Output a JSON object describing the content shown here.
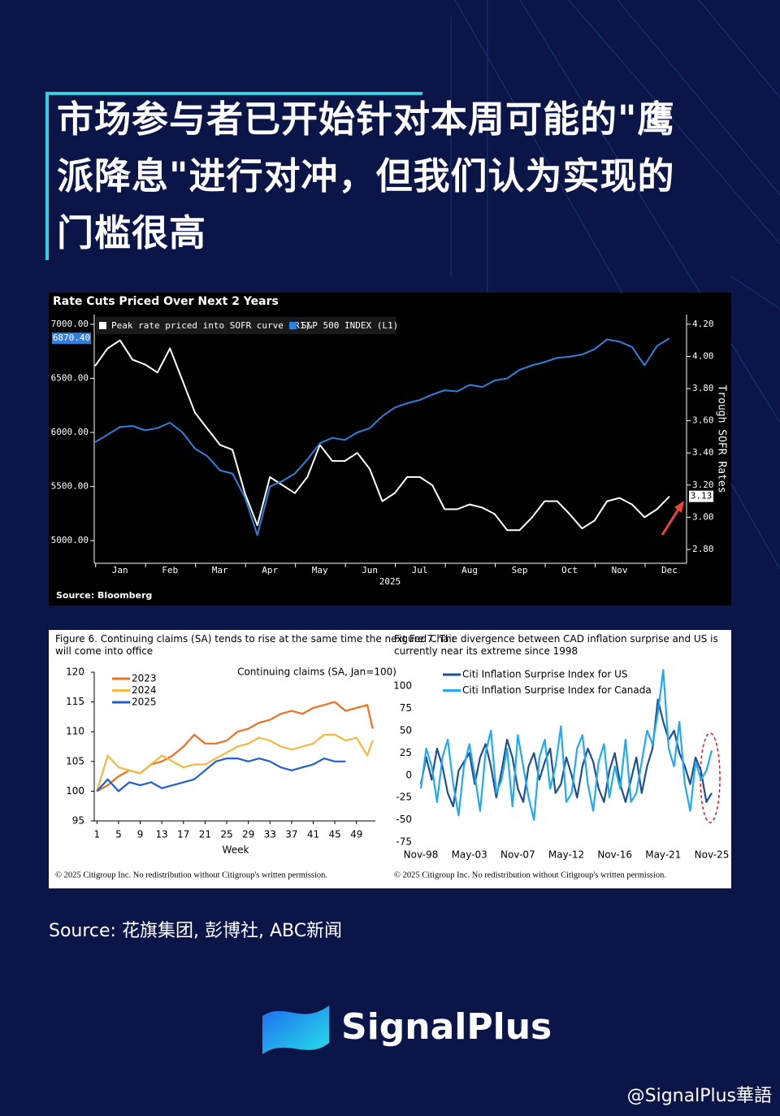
{
  "header": {
    "title": "市场参与者已开始针对本周可能的\"鹰派降息\"进行对冲，但我们认为实现的门槛很高"
  },
  "chart_data": [
    {
      "type": "line",
      "title": "Rate Cuts Priced Over Next 2 Years",
      "source": "Source: Bloomberg",
      "categories": [
        null,
        null,
        "Jan",
        null,
        null,
        null,
        "Feb",
        null,
        null,
        null,
        "Mar",
        null,
        null,
        null,
        "Apr",
        null,
        null,
        null,
        "May",
        null,
        null,
        null,
        "Jun",
        null,
        null,
        null,
        "Jul",
        null,
        null,
        null,
        "Aug",
        null,
        null,
        null,
        "Sep",
        null,
        null,
        null,
        "Oct",
        null,
        null,
        null,
        "Nov",
        null,
        null,
        null,
        "Dec"
      ],
      "xlabel": "2025",
      "y2label": "Trough SOFR Rates",
      "ylim": [
        4790,
        7090
      ],
      "yticks": [
        {
          "value": 5000,
          "label": "5000.00"
        },
        {
          "value": 5500,
          "label": "5500.00"
        },
        {
          "value": 6000,
          "label": "6000.00"
        },
        {
          "value": 6500,
          "label": "6500.00"
        },
        {
          "value": 7000,
          "label": "7000.00"
        }
      ],
      "y2lim": [
        2.714,
        4.26
      ],
      "y2ticks": [
        {
          "value": 2.8,
          "label": "2.80"
        },
        {
          "value": 3,
          "label": "3.00"
        },
        {
          "value": 3.2,
          "label": "3.20"
        },
        {
          "value": 3.4,
          "label": "3.40"
        },
        {
          "value": 3.6,
          "label": "3.60"
        },
        {
          "value": 3.8,
          "label": "3.80"
        },
        {
          "value": 4,
          "label": "4.00"
        },
        {
          "value": 4.2,
          "label": "4.20"
        }
      ],
      "series": [
        {
          "name": "Peak rate priced into SOFR curve (R1)",
          "color": "#ffffff",
          "axis": "y2",
          "values": [
            3.94,
            4.05,
            4.1,
            3.98,
            3.95,
            3.9,
            4.05,
            3.85,
            3.65,
            3.55,
            3.45,
            3.42,
            3.15,
            2.95,
            3.25,
            3.2,
            3.15,
            3.25,
            3.45,
            3.35,
            3.35,
            3.4,
            3.3,
            3.1,
            3.15,
            3.25,
            3.25,
            3.2,
            3.05,
            3.05,
            3.08,
            3.06,
            3.02,
            2.92,
            2.92,
            3.0,
            3.1,
            3.1,
            3.02,
            2.93,
            2.98,
            3.1,
            3.12,
            3.08,
            3.0,
            3.05,
            3.13
          ]
        },
        {
          "name": "S&P 500 INDEX  (L1)",
          "color": "#2f7fe0",
          "values": [
            5910,
            5980,
            6050,
            6060,
            6020,
            6040,
            6090,
            6000,
            5850,
            5780,
            5650,
            5620,
            5400,
            5050,
            5500,
            5550,
            5620,
            5750,
            5900,
            5950,
            5930,
            6000,
            6040,
            6150,
            6230,
            6270,
            6300,
            6350,
            6390,
            6380,
            6440,
            6420,
            6480,
            6500,
            6580,
            6620,
            6650,
            6690,
            6700,
            6720,
            6770,
            6860,
            6840,
            6790,
            6620,
            6800,
            6870.4
          ],
          "value_labels": [
            null,
            null,
            null,
            null,
            null,
            null,
            null,
            null,
            null,
            null,
            null,
            null,
            null,
            null,
            null,
            null,
            null,
            null,
            null,
            null,
            null,
            null,
            null,
            null,
            null,
            null,
            null,
            null,
            null,
            null,
            null,
            null,
            null,
            null,
            null,
            null,
            null,
            null,
            null,
            null,
            null,
            null,
            null,
            null,
            null,
            null,
            "6870.40"
          ]
        }
      ]
    },
    {
      "type": "line",
      "title": "Figure 6. Continuing claims (SA) tends to rise at the same time the next Fed Chair will come into office",
      "subtitle": "Continuing claims (SA, Jan=100)",
      "xlabel": "Week",
      "footnote": "© 2025 Citigroup Inc. No redistribution without Citigroup's written permission.",
      "x": [
        1,
        3,
        5,
        7,
        9,
        11,
        13,
        15,
        17,
        19,
        21,
        23,
        25,
        27,
        29,
        31,
        33,
        35,
        37,
        39,
        41,
        43,
        45,
        47,
        49,
        51,
        52
      ],
      "xlim": [
        0.5,
        52.5
      ],
      "xticks": [
        1,
        5,
        9,
        13,
        17,
        21,
        25,
        29,
        33,
        37,
        41,
        45,
        49
      ],
      "ylim": [
        95,
        120
      ],
      "yticks": [
        95,
        100,
        105,
        110,
        115,
        120
      ],
      "series": [
        {
          "name": "2023",
          "color": "#f07020",
          "values": [
            100,
            101,
            102.5,
            103.5,
            103,
            104.5,
            105,
            106,
            107.5,
            109.5,
            108,
            108,
            108.5,
            110,
            110.5,
            111.5,
            112,
            113,
            113.5,
            113,
            114,
            114.5,
            115,
            113.5,
            114,
            114.5,
            110.5
          ]
        },
        {
          "name": "2024",
          "color": "#f5b840",
          "values": [
            100,
            106,
            104,
            103.5,
            103,
            104.5,
            106,
            105,
            104,
            104.5,
            104.5,
            105.5,
            106.5,
            107.5,
            108,
            109,
            108.5,
            107.5,
            107,
            107.5,
            108,
            109.5,
            109.5,
            108.5,
            109,
            106,
            108.5
          ]
        },
        {
          "name": "2025",
          "color": "#2060c8",
          "values": [
            100,
            102,
            100,
            101.5,
            101,
            101.5,
            100.5,
            101,
            101.5,
            102,
            103.5,
            105,
            105.5,
            105.5,
            105,
            105.5,
            105,
            104,
            103.5,
            104,
            104.5,
            105.5,
            105,
            105,
            null,
            null,
            null
          ]
        }
      ]
    },
    {
      "type": "line",
      "title": "Figure 7. The divergence between CAD inflation surprise and US is currently near its extreme since 1998",
      "footnote": "© 2025 Citigroup Inc. No redistribution without Citigroup's written permission.",
      "categories": [
        "Nov-98",
        null,
        null,
        null,
        null,
        null,
        null,
        null,
        null,
        "May-03",
        null,
        null,
        null,
        null,
        null,
        null,
        null,
        null,
        "Nov-07",
        null,
        null,
        null,
        null,
        null,
        null,
        null,
        null,
        "May-12",
        null,
        null,
        null,
        null,
        null,
        null,
        null,
        null,
        "Nov-16",
        null,
        null,
        null,
        null,
        null,
        null,
        null,
        null,
        "May-21",
        null,
        null,
        null,
        null,
        null,
        null,
        null,
        null,
        "Nov-25"
      ],
      "ylim": [
        -75,
        122
      ],
      "yticks": [
        -75,
        -50,
        -25,
        0,
        25,
        50,
        75,
        100
      ],
      "series": [
        {
          "name": "Citi Inflation Surprise Index for US",
          "color": "#1f4f8f",
          "values": [
            -10,
            20,
            -5,
            30,
            10,
            -20,
            -35,
            5,
            15,
            25,
            -10,
            20,
            35,
            10,
            -25,
            5,
            40,
            20,
            -15,
            -30,
            10,
            25,
            -5,
            15,
            30,
            -20,
            -10,
            20,
            0,
            -25,
            10,
            30,
            15,
            -15,
            -30,
            5,
            25,
            -10,
            -30,
            -5,
            20,
            -20,
            10,
            30,
            85,
            60,
            40,
            50,
            25,
            10,
            -10,
            20,
            5,
            -30,
            -20
          ]
        },
        {
          "name": "Citi Inflation Surprise Index for Canada",
          "color": "#22aaf0",
          "values": [
            -15,
            30,
            10,
            -30,
            20,
            40,
            -10,
            -45,
            10,
            35,
            0,
            -40,
            25,
            50,
            -20,
            -5,
            30,
            -35,
            45,
            10,
            -25,
            -50,
            20,
            40,
            -15,
            10,
            55,
            -30,
            -20,
            30,
            45,
            -10,
            -40,
            15,
            35,
            -25,
            10,
            -15,
            40,
            -30,
            -20,
            15,
            50,
            35,
            70,
            118,
            30,
            10,
            60,
            -10,
            -40,
            15,
            -5,
            5,
            28
          ]
        }
      ]
    }
  ],
  "source": "Source: 花旗集团, 彭博社, ABC新闻",
  "brand": "SignalPlus",
  "watermark": "@SignalPlus華語"
}
